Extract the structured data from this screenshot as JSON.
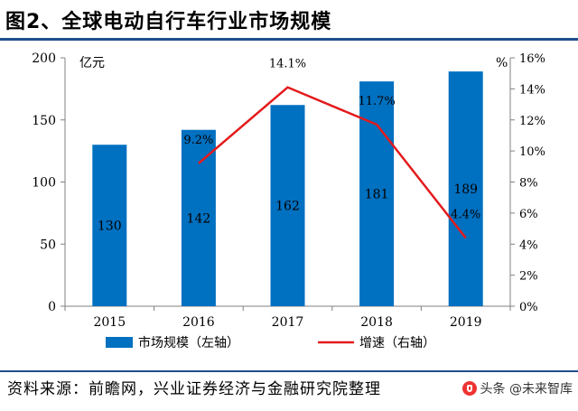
{
  "page": {
    "title": "图2、全球电动自行车行业市场规模",
    "source": "资料来源：前瞻网，兴业证券经济与金融研究院整理",
    "watermark": "头条 @未来智库"
  },
  "chart_data": {
    "type": "bar",
    "categories": [
      "2015",
      "2016",
      "2017",
      "2018",
      "2019"
    ],
    "series": [
      {
        "name": "市场规模（左轴）",
        "type": "bar",
        "axis": "left",
        "values": [
          130,
          142,
          162,
          181,
          189
        ],
        "labels": [
          "130",
          "142",
          "162",
          "181",
          "189"
        ],
        "color": "#0070c0"
      },
      {
        "name": "增速（右轴）",
        "type": "line",
        "axis": "right",
        "values": [
          null,
          9.2,
          14.1,
          11.7,
          4.4
        ],
        "labels": [
          "",
          "9.2%",
          "14.1%",
          "11.7%",
          "4.4%"
        ],
        "color": "#e31a1c"
      }
    ],
    "y_left": {
      "label": "亿元",
      "ylim": [
        0,
        200
      ],
      "ticks": [
        "0",
        "50",
        "100",
        "150",
        "200"
      ]
    },
    "y_right": {
      "label": "%",
      "ylim": [
        0,
        16
      ],
      "ticks": [
        "0%",
        "2%",
        "4%",
        "6%",
        "8%",
        "10%",
        "12%",
        "14%",
        "16%"
      ]
    },
    "grid": false,
    "legend_placement": "bottom"
  }
}
